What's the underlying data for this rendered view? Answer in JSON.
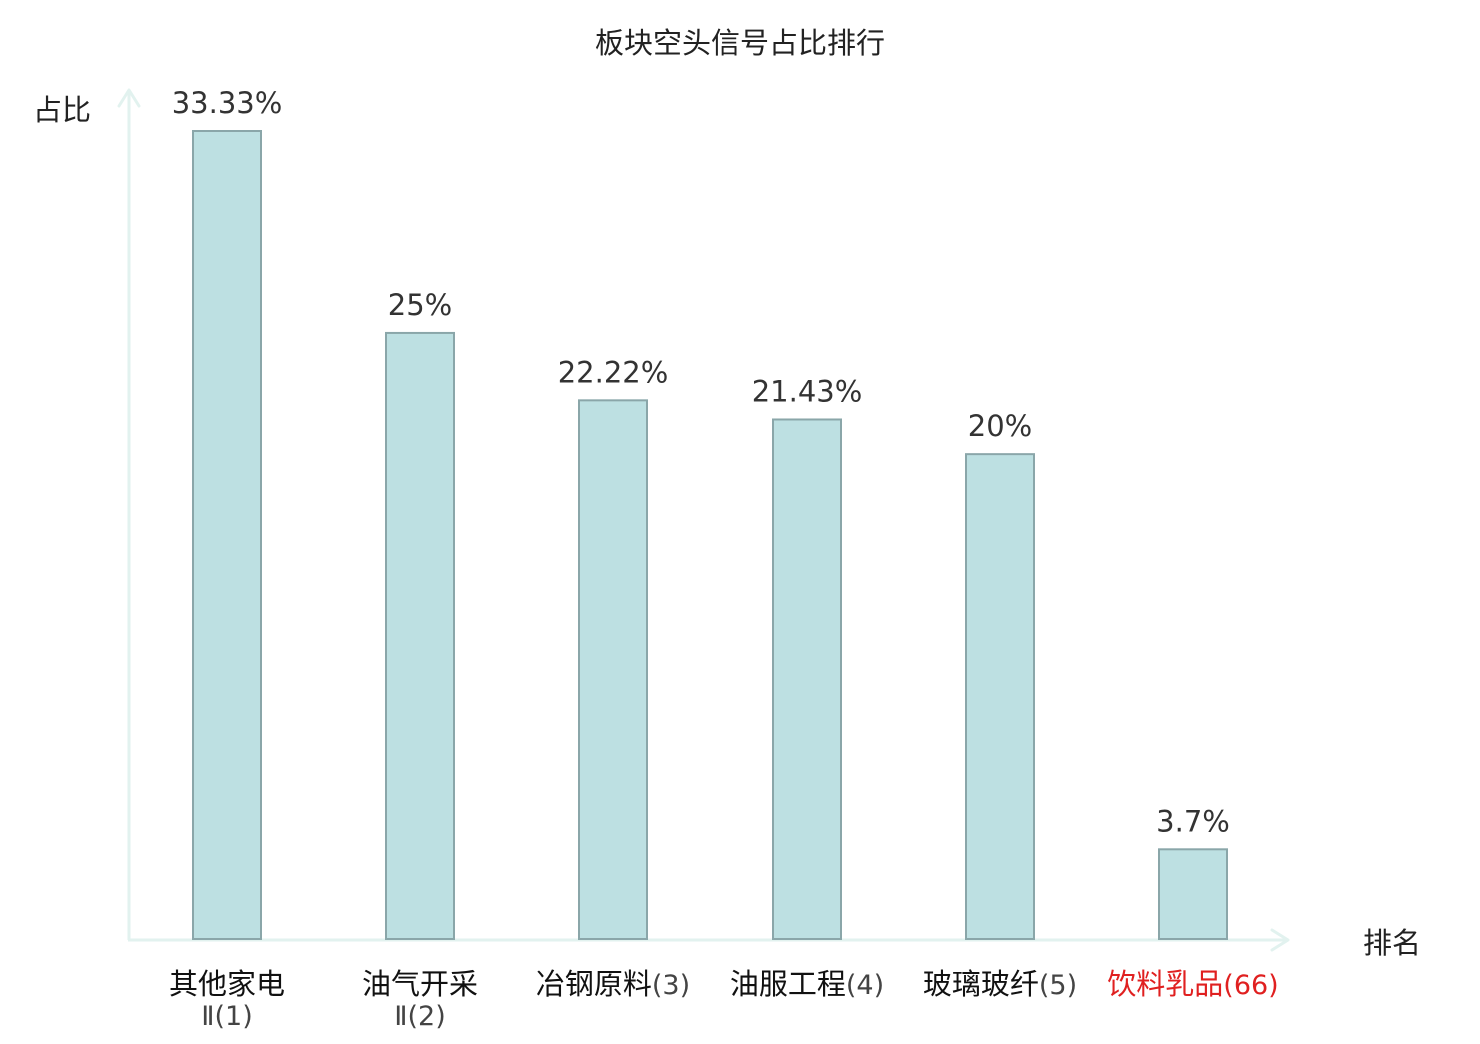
{
  "chart_data": {
    "type": "bar",
    "title": "板块空头信号占比排行",
    "ylabel": "占比",
    "xlabel": "排名",
    "unit": "%",
    "ylim": [
      0,
      35
    ],
    "grid": false,
    "categories": [
      {
        "name": "其他家电",
        "rank": "Ⅱ(1)",
        "highlight": false
      },
      {
        "name": "油气开采",
        "rank": "Ⅱ(2)",
        "highlight": false
      },
      {
        "name": "冶钢原料",
        "rank": "(3)",
        "highlight": false
      },
      {
        "name": "油服工程",
        "rank": "(4)",
        "highlight": false
      },
      {
        "name": "玻璃玻纤",
        "rank": "(5)",
        "highlight": false
      },
      {
        "name": "饮料乳品",
        "rank": "(66)",
        "highlight": true
      }
    ],
    "values": [
      33.33,
      25,
      22.22,
      21.43,
      20,
      3.7
    ],
    "value_labels": [
      "33.33%",
      "25%",
      "22.22%",
      "21.43%",
      "20%",
      "3.7%"
    ]
  },
  "colors": {
    "bar_fill": "#bde0e2",
    "bar_stroke": "#8aa6a9",
    "axis": "#e2f2ef",
    "text": "#333333",
    "highlight_text": "#e02020"
  }
}
